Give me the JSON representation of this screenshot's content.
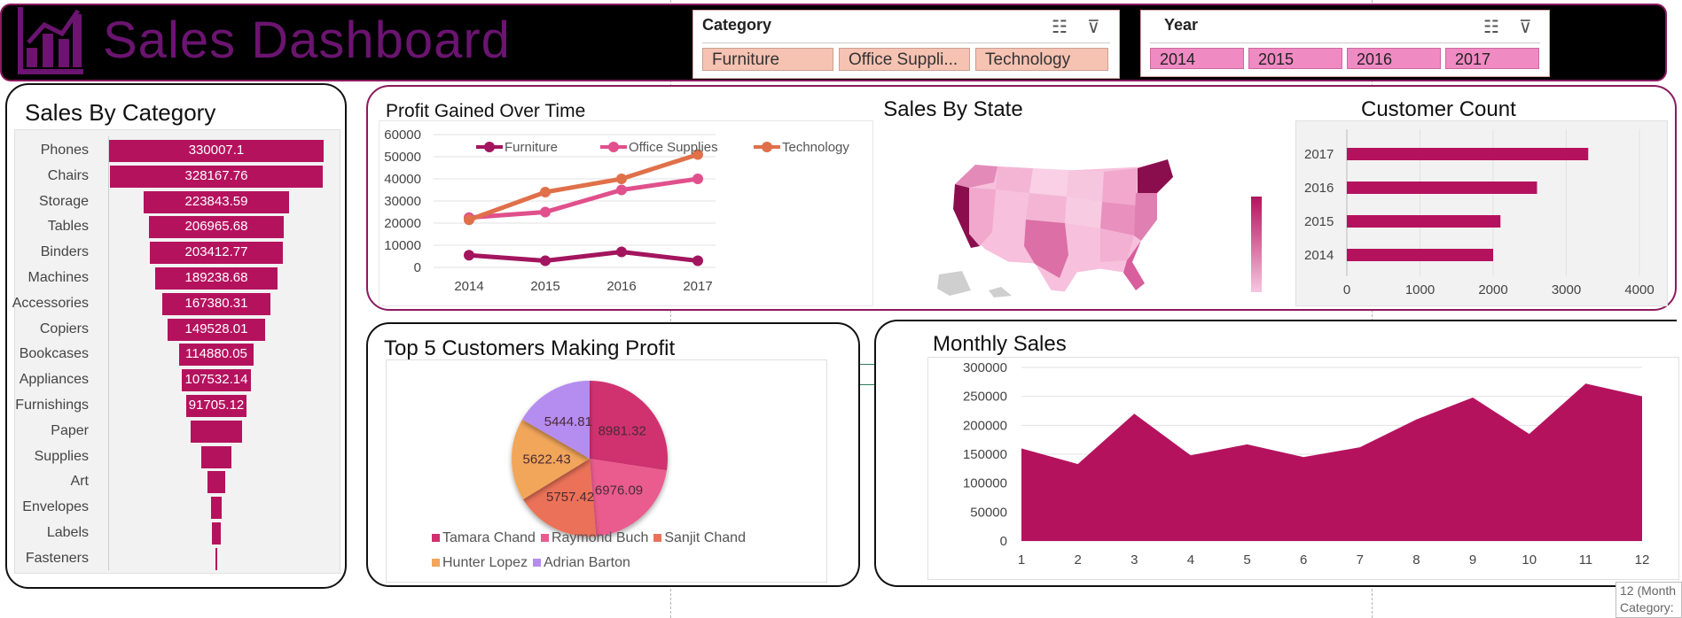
{
  "app": {
    "title": "Sales Dashboard"
  },
  "colors": {
    "accent": "#b5125e",
    "header_bg": "#000000",
    "title": "#6b1470"
  },
  "slicers": {
    "category": {
      "title": "Category",
      "items": [
        "Furniture",
        "Office Suppli...",
        "Technology"
      ]
    },
    "year": {
      "title": "Year",
      "items": [
        "2014",
        "2015",
        "2016",
        "2017"
      ]
    }
  },
  "sales_by_category": {
    "title": "Sales By Category",
    "chart_data": {
      "type": "bar",
      "categories": [
        "Phones",
        "Chairs",
        "Storage",
        "Tables",
        "Binders",
        "Machines",
        "Accessories",
        "Copiers",
        "Bookcases",
        "Appliances",
        "Furnishings",
        "Paper",
        "Supplies",
        "Art",
        "Envelopes",
        "Labels",
        "Fasteners"
      ],
      "values": [
        330007.1,
        328167.76,
        223843.59,
        206965.68,
        203412.77,
        189238.68,
        167380.31,
        149528.01,
        114880.05,
        107532.14,
        91705.12,
        78479,
        46673,
        27119,
        16476,
        12486,
        3024
      ],
      "labels": [
        "330007.1",
        "328167.76",
        "223843.59",
        "206965.68",
        "203412.77",
        "189238.68",
        "167380.31",
        "149528.01",
        "114880.05",
        "107532.14",
        "91705.12",
        "",
        "",
        "",
        "",
        "",
        ""
      ]
    }
  },
  "profit_over_time": {
    "title": "Profit Gained Over Time",
    "chart_data": {
      "type": "line",
      "x": [
        "2014",
        "2015",
        "2016",
        "2017"
      ],
      "y_ticks": [
        "60000",
        "50000",
        "40000",
        "30000",
        "20000",
        "10000",
        "0"
      ],
      "ylim": [
        0,
        60000
      ],
      "series": [
        {
          "name": "Furniture",
          "color": "#a3155e",
          "values": [
            5500,
            3000,
            7000,
            3000
          ]
        },
        {
          "name": "Office Supplies",
          "color": "#e0508c",
          "values": [
            22500,
            25000,
            35000,
            40000
          ]
        },
        {
          "name": "Technology",
          "color": "#e0704a",
          "values": [
            21500,
            34000,
            40000,
            51000
          ]
        }
      ]
    }
  },
  "sales_by_state": {
    "title": "Sales By State"
  },
  "customer_count": {
    "title": "Customer Count",
    "chart_data": {
      "type": "bar",
      "categories": [
        "2017",
        "2016",
        "2015",
        "2014"
      ],
      "values": [
        3300,
        2600,
        2100,
        2000
      ],
      "x_ticks": [
        "0",
        "1000",
        "2000",
        "3000",
        "4000"
      ],
      "xlim": [
        0,
        4000
      ]
    }
  },
  "top_customers": {
    "title": "Top 5 Customers Making Profit",
    "chart_data": {
      "type": "pie",
      "slices": [
        {
          "name": "Tamara Chand",
          "value": 8981.32,
          "label": "8981.32",
          "color": "#d0306f"
        },
        {
          "name": "Raymond Buch",
          "value": 6976.09,
          "label": "6976.09",
          "color": "#ea5b8e"
        },
        {
          "name": "Sanjit Chand",
          "value": 5757.42,
          "label": "5757.42",
          "color": "#eb7258"
        },
        {
          "name": "Hunter Lopez",
          "value": 5622.43,
          "label": "5622.43",
          "color": "#f2a65a"
        },
        {
          "name": "Adrian Barton",
          "value": 5444.81,
          "label": "5444.81",
          "color": "#b58cf0"
        }
      ]
    }
  },
  "monthly_sales": {
    "title": "Monthly Sales",
    "chart_data": {
      "type": "area",
      "x": [
        "1",
        "2",
        "3",
        "4",
        "5",
        "6",
        "7",
        "8",
        "9",
        "10",
        "11",
        "12"
      ],
      "values": [
        160000,
        133000,
        220000,
        148000,
        167000,
        145000,
        162000,
        210000,
        248000,
        185000,
        272000,
        250000
      ],
      "y_ticks": [
        "300000",
        "250000",
        "200000",
        "150000",
        "100000",
        "50000",
        "0"
      ],
      "ylim": [
        0,
        300000
      ],
      "color": "#b5125e"
    }
  },
  "tooltip": {
    "line1": "12 (Month",
    "line2": "Category:"
  }
}
